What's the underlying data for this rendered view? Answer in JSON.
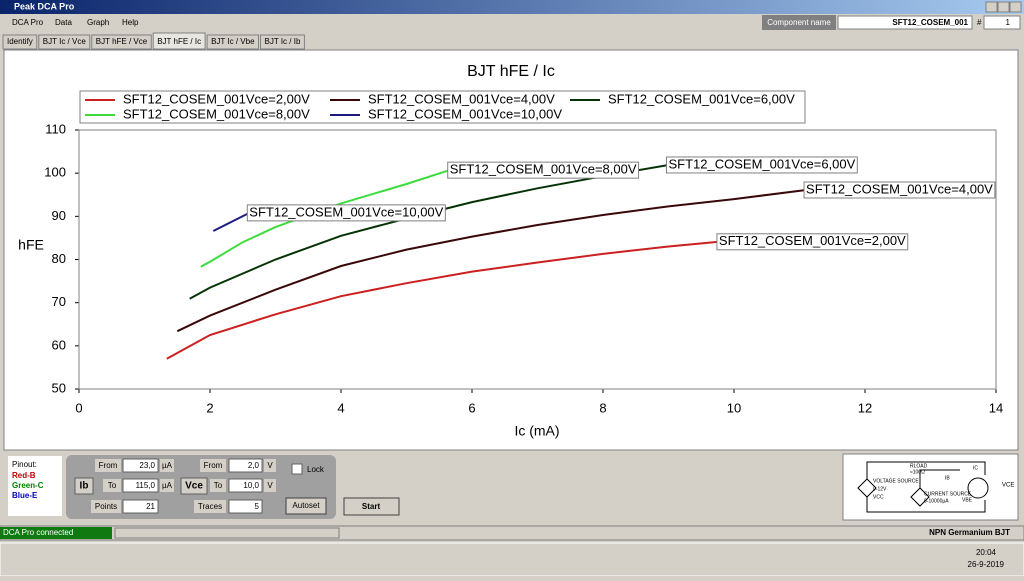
{
  "window": {
    "title": "Peak DCA Pro",
    "menu": [
      "DCA Pro",
      "Data",
      "Graph",
      "Help"
    ],
    "tabs": [
      "Identify",
      "BJT Ic / Vce",
      "BJT hFE / Vce",
      "BJT hFE / Ic",
      "BJT Ic / Vbe",
      "BJT Ic / Ib"
    ],
    "component_label": "Component name",
    "component_name": "SFT12_COSEM_001",
    "number_label": "#",
    "number": "1"
  },
  "chart_data": {
    "type": "line",
    "title": "BJT hFE / Ic",
    "x_label": "Ic (mA)",
    "y_label": "hFE",
    "xlim": [
      0,
      14
    ],
    "xticks": [
      0,
      2,
      4,
      6,
      8,
      10,
      12,
      14
    ],
    "ylim": [
      50,
      110
    ],
    "yticks": [
      50,
      60,
      70,
      80,
      90,
      100,
      110
    ],
    "grid": false,
    "legend": "top",
    "series": [
      {
        "name": "SFT12_COSEM_001Vce=2,00V",
        "color": "#cc1f1f",
        "x": [
          1.34,
          2,
          3,
          4,
          5,
          6,
          7,
          8,
          9,
          9.77
        ],
        "values": [
          57,
          62.5,
          67.3,
          71.5,
          74.5,
          77.2,
          79.3,
          81.3,
          83,
          84.1
        ]
      },
      {
        "name": "SFT12_COSEM_001Vce=4,00V",
        "color": "#3a0808",
        "x": [
          1.5,
          2,
          3,
          4,
          5,
          6,
          7,
          8,
          9,
          10,
          11.1
        ],
        "values": [
          63.4,
          67,
          73,
          78.5,
          82.3,
          85.3,
          88,
          90.3,
          92.3,
          94,
          96.1
        ]
      },
      {
        "name": "SFT12_COSEM_001Vce=6,00V",
        "color": "#063306",
        "x": [
          1.69,
          2,
          3,
          4,
          5,
          6,
          7,
          8,
          9
        ],
        "values": [
          70.9,
          73.5,
          80,
          85.5,
          89.5,
          93.3,
          96.5,
          99.3,
          101.9
        ]
      },
      {
        "name": "SFT12_COSEM_001Vce=8,00V",
        "color": "#3ddc3d",
        "x": [
          1.86,
          2,
          2.5,
          3,
          4,
          5,
          5.66
        ],
        "values": [
          78.3,
          79.5,
          84,
          87.5,
          93,
          97.5,
          100.7
        ]
      },
      {
        "name": "SFT12_COSEM_001Vce=10,00V",
        "color": "#1c1c80",
        "x": [
          2.05,
          2.6
        ],
        "values": [
          86.6,
          90.8
        ]
      }
    ]
  },
  "pinout": {
    "title": "Pinout:",
    "pins": [
      "Red-B",
      "Green-C",
      "Blue-E"
    ]
  },
  "controls": {
    "ib": "Ib",
    "ib_from_label": "From",
    "ib_from": "23,0",
    "ib_from_unit": "µA",
    "ib_to_label": "To",
    "ib_to": "115,0",
    "ib_to_unit": "µA",
    "points_label": "Points",
    "points": "21",
    "vce": "Vce",
    "vce_from_label": "From",
    "vce_from": "2,0",
    "vce_from_unit": "V",
    "vce_to_label": "To",
    "vce_to": "10,0",
    "vce_to_unit": "V",
    "traces_label": "Traces",
    "traces": "5",
    "lock": "Lock",
    "autoset": "Autoset",
    "start": "Start"
  },
  "diagram": {
    "voltage_source": "VOLTAGE SOURCE",
    "voltage_range": "0-12V",
    "vcc": "VCC",
    "rload": "RLOAD",
    "rload_value": "≈100Ω",
    "current_source": "CURRENT SOURCE",
    "current_range": "0-10000µA",
    "ic": "IC",
    "ib": "IB",
    "vbe": "VBE",
    "vce": "VCE"
  },
  "status": {
    "connection": "DCA Pro connected",
    "device": "NPN Germanium BJT"
  },
  "taskbar": {
    "time": "20:04",
    "date": "26-9-2019"
  }
}
